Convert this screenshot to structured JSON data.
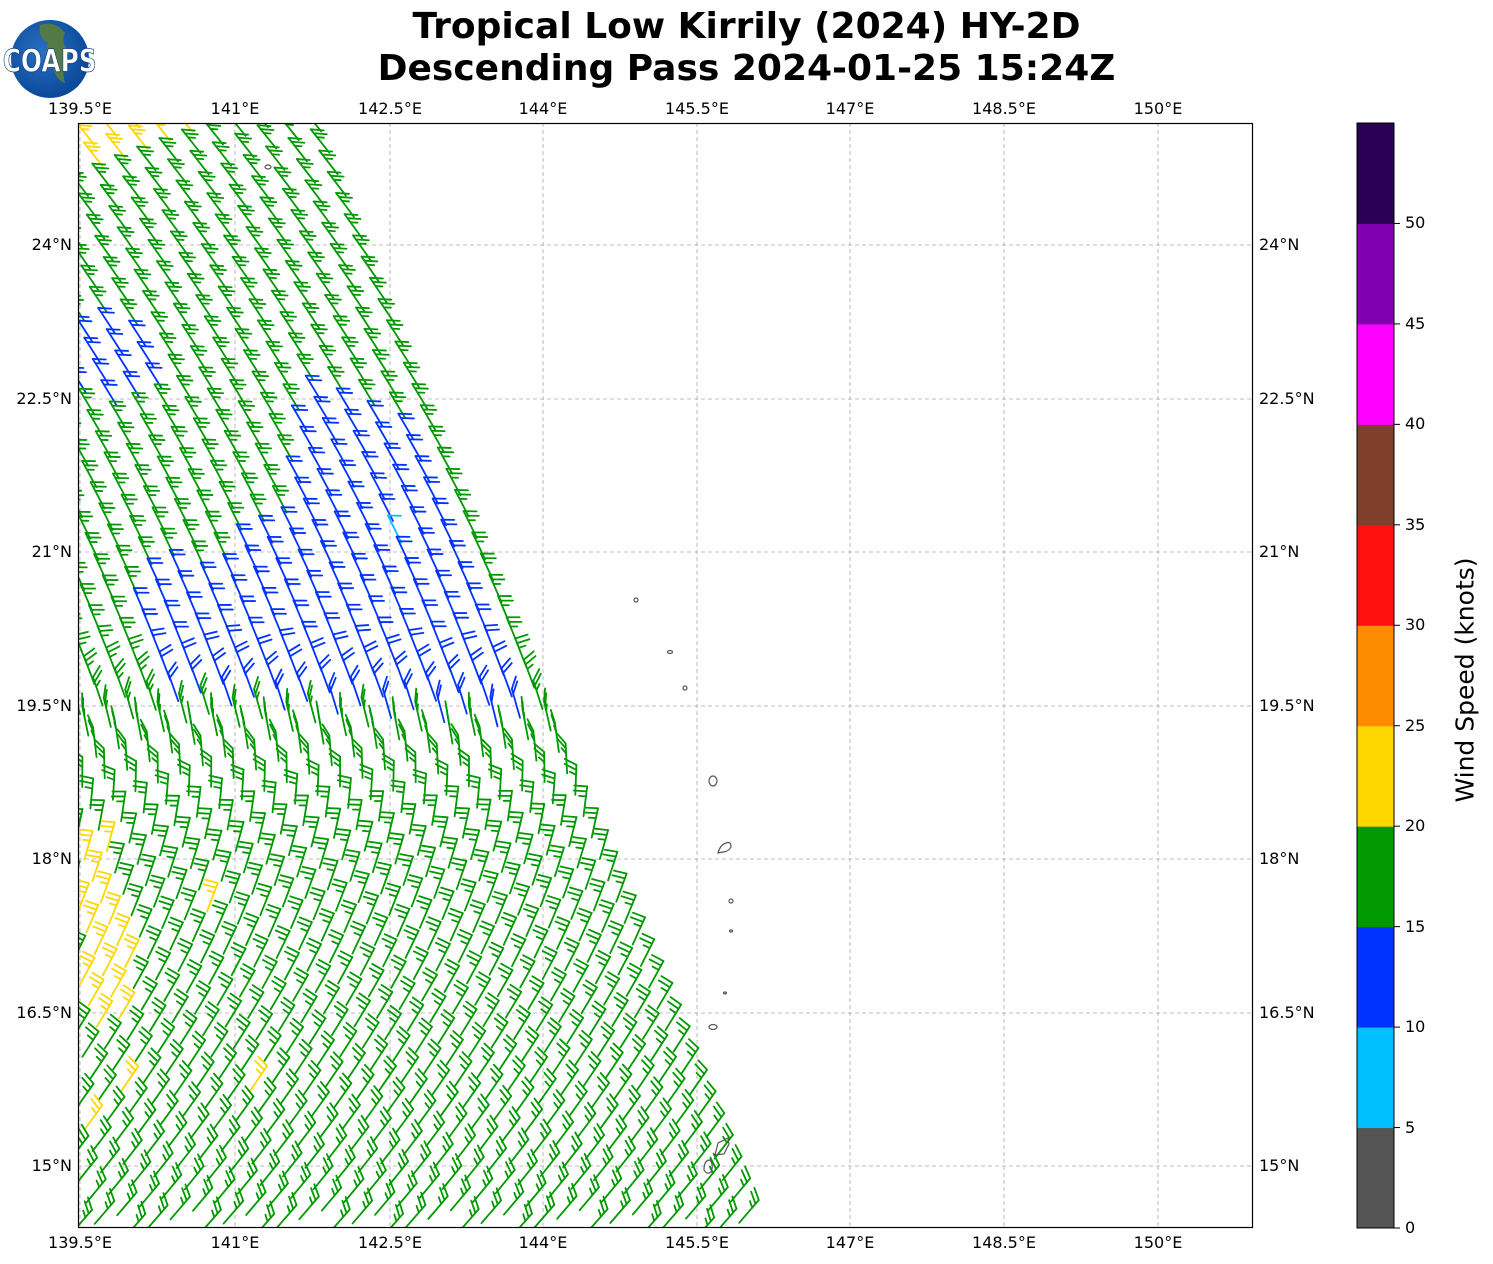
{
  "header": {
    "title_line1": "Tropical Low Kirrily (2024) HY-2D",
    "title_line2": "Descending Pass 2024-01-25 15:24Z",
    "logo_text": "COAPS"
  },
  "map": {
    "lon_ticks": [
      "139.5°E",
      "141°E",
      "142.5°E",
      "144°E",
      "145.5°E",
      "147°E",
      "148.5°E",
      "150°E"
    ],
    "lat_ticks": [
      "24°N",
      "22.5°N",
      "21°N",
      "19.5°N",
      "18°N",
      "16.5°N",
      "15°N"
    ],
    "wind_colors": {
      "green": "#009900",
      "blue": "#0033ff",
      "yellow": "#ffd700",
      "cyan": "#00bfff"
    },
    "coastline_color": "#555555"
  },
  "colorbar": {
    "label": "Wind Speed (knots)",
    "ticks": [
      "0",
      "5",
      "10",
      "15",
      "20",
      "25",
      "30",
      "35",
      "40",
      "45",
      "50"
    ],
    "colors": [
      "#555555",
      "#00bfff",
      "#0033ff",
      "#009900",
      "#ffd700",
      "#ff8c00",
      "#ff1010",
      "#7f3f2a",
      "#ff00ff",
      "#8000b0",
      "#2a0055"
    ]
  }
}
